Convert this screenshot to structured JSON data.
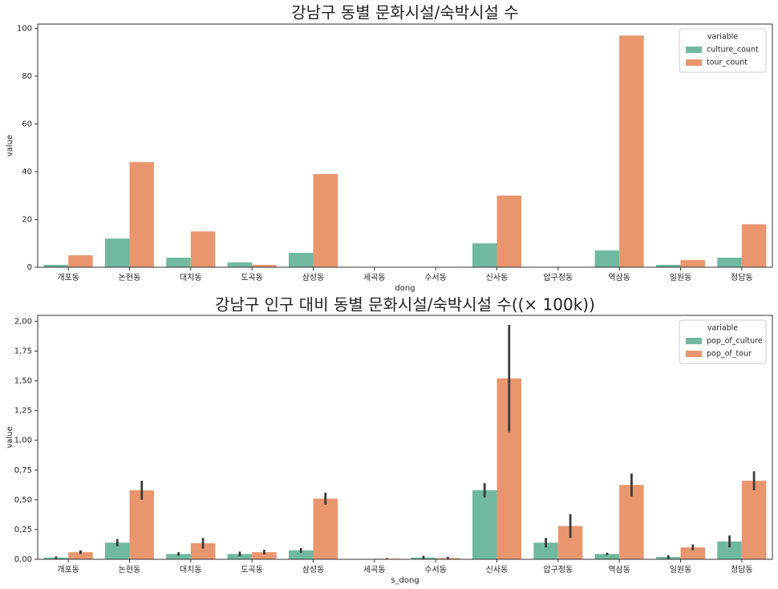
{
  "chart_data": [
    {
      "type": "bar",
      "title": "강남구 동별 문화시설/숙박시설 수",
      "xlabel": "dong",
      "ylabel": "value",
      "categories": [
        "개포동",
        "논현동",
        "대치동",
        "도곡동",
        "삼성동",
        "세곡동",
        "수서동",
        "신사동",
        "압구정동",
        "역삼동",
        "일원동",
        "청담동"
      ],
      "series": [
        {
          "name": "culture_count",
          "color": "#70b9a0",
          "values": [
            1,
            12,
            4,
            2,
            6,
            0,
            0,
            10,
            0,
            7,
            1,
            4
          ]
        },
        {
          "name": "tour_count",
          "color": "#e9966f",
          "values": [
            5,
            44,
            15,
            1,
            39,
            0,
            0,
            30,
            0,
            97,
            3,
            18
          ]
        }
      ],
      "ylim": [
        0,
        101.8
      ],
      "yticks": [
        0,
        20,
        40,
        60,
        80,
        100
      ],
      "legend": "upper right",
      "legend_title": "variable"
    },
    {
      "type": "bar",
      "title": "강남구 인구 대비 동별 문화시설/숙박시설 수((× 100k))",
      "xlabel": "s_dong",
      "ylabel": "value",
      "categories": [
        "개포동",
        "논현동",
        "대치동",
        "도곡동",
        "삼성동",
        "세곡동",
        "수서동",
        "신사동",
        "압구정동",
        "역삼동",
        "일원동",
        "청담동"
      ],
      "series": [
        {
          "name": "pop_of_culture",
          "color": "#70b9a0",
          "values": [
            0.015,
            0.14,
            0.045,
            0.045,
            0.075,
            0,
            0.015,
            0.58,
            0.14,
            0.045,
            0.02,
            0.15
          ],
          "errors": [
            0.01,
            0.03,
            0.015,
            0.02,
            0.02,
            0,
            0.015,
            0.06,
            0.04,
            0.01,
            0.015,
            0.05
          ]
        },
        {
          "name": "pop_of_tour",
          "color": "#e9966f",
          "values": [
            0.06,
            0.58,
            0.135,
            0.06,
            0.51,
            0.005,
            0.01,
            1.52,
            0.28,
            0.625,
            0.1,
            0.66
          ],
          "errors": [
            0.015,
            0.08,
            0.045,
            0.02,
            0.05,
            0.005,
            0.01,
            0.45,
            0.1,
            0.095,
            0.025,
            0.08
          ]
        }
      ],
      "ylim": [
        0,
        2.05
      ],
      "yticks": [
        {
          "value": 0,
          "label": "0,00"
        },
        {
          "value": 0.25,
          "label": "0,25"
        },
        {
          "value": 0.5,
          "label": "0,50"
        },
        {
          "value": 0.75,
          "label": "0,75"
        },
        {
          "value": 1,
          "label": "1,00"
        },
        {
          "value": 1.25,
          "label": "1,25"
        },
        {
          "value": 1.5,
          "label": "1,50"
        },
        {
          "value": 1.75,
          "label": "1,75"
        },
        {
          "value": 2,
          "label": "2,00"
        }
      ],
      "legend": "upper right",
      "legend_title": "variable"
    }
  ]
}
